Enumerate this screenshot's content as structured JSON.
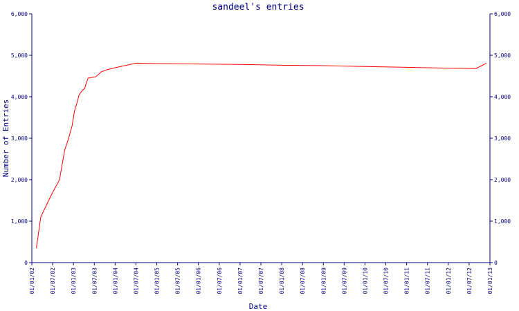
{
  "chart_data": {
    "type": "line",
    "title": "sandeel's entries",
    "xlabel": "Date",
    "ylabel": "Number of Entries",
    "x_ticks": [
      "01/01/02",
      "01/07/02",
      "01/01/03",
      "01/07/03",
      "01/01/04",
      "01/07/04",
      "01/01/05",
      "01/07/05",
      "01/01/06",
      "01/07/06",
      "01/01/07",
      "01/07/07",
      "01/01/08",
      "01/07/08",
      "01/01/09",
      "01/07/09",
      "01/01/10",
      "01/07/10",
      "01/01/11",
      "01/07/11",
      "01/01/12",
      "01/07/12",
      "01/01/13"
    ],
    "y_ticks": [
      "0",
      "1,000",
      "2,000",
      "3,000",
      "4,000",
      "5,000",
      "6,000"
    ],
    "ylim": [
      0,
      6000
    ],
    "xlim": [
      "2002-01-01",
      "2013-01-01"
    ],
    "colors": {
      "line": "#ff0000",
      "axes": "#000080",
      "text": "#000080"
    },
    "series": [
      {
        "x": [
          "2002-02-10",
          "2002-03-20",
          "2002-06-15",
          "2002-09-01",
          "2002-10-15",
          "2002-11-20",
          "2002-12-20",
          "2003-01-10",
          "2003-02-01",
          "2003-02-20",
          "2003-03-20",
          "2003-04-10",
          "2003-04-20",
          "2003-05-10",
          "2003-07-15",
          "2003-09-01",
          "2003-10-20",
          "2004-01-01",
          "2004-07-01",
          "2005-01-01",
          "2006-01-01",
          "2007-01-01",
          "2008-01-01",
          "2009-01-01",
          "2010-01-01",
          "2011-01-01",
          "2012-01-01",
          "2012-09-01",
          "2012-12-01"
        ],
        "y": [
          350,
          1100,
          1600,
          2000,
          2700,
          3000,
          3300,
          3650,
          3850,
          4050,
          4150,
          4200,
          4300,
          4450,
          4480,
          4600,
          4650,
          4700,
          4810,
          4800,
          4790,
          4780,
          4760,
          4750,
          4730,
          4710,
          4690,
          4680,
          4810
        ]
      }
    ]
  }
}
